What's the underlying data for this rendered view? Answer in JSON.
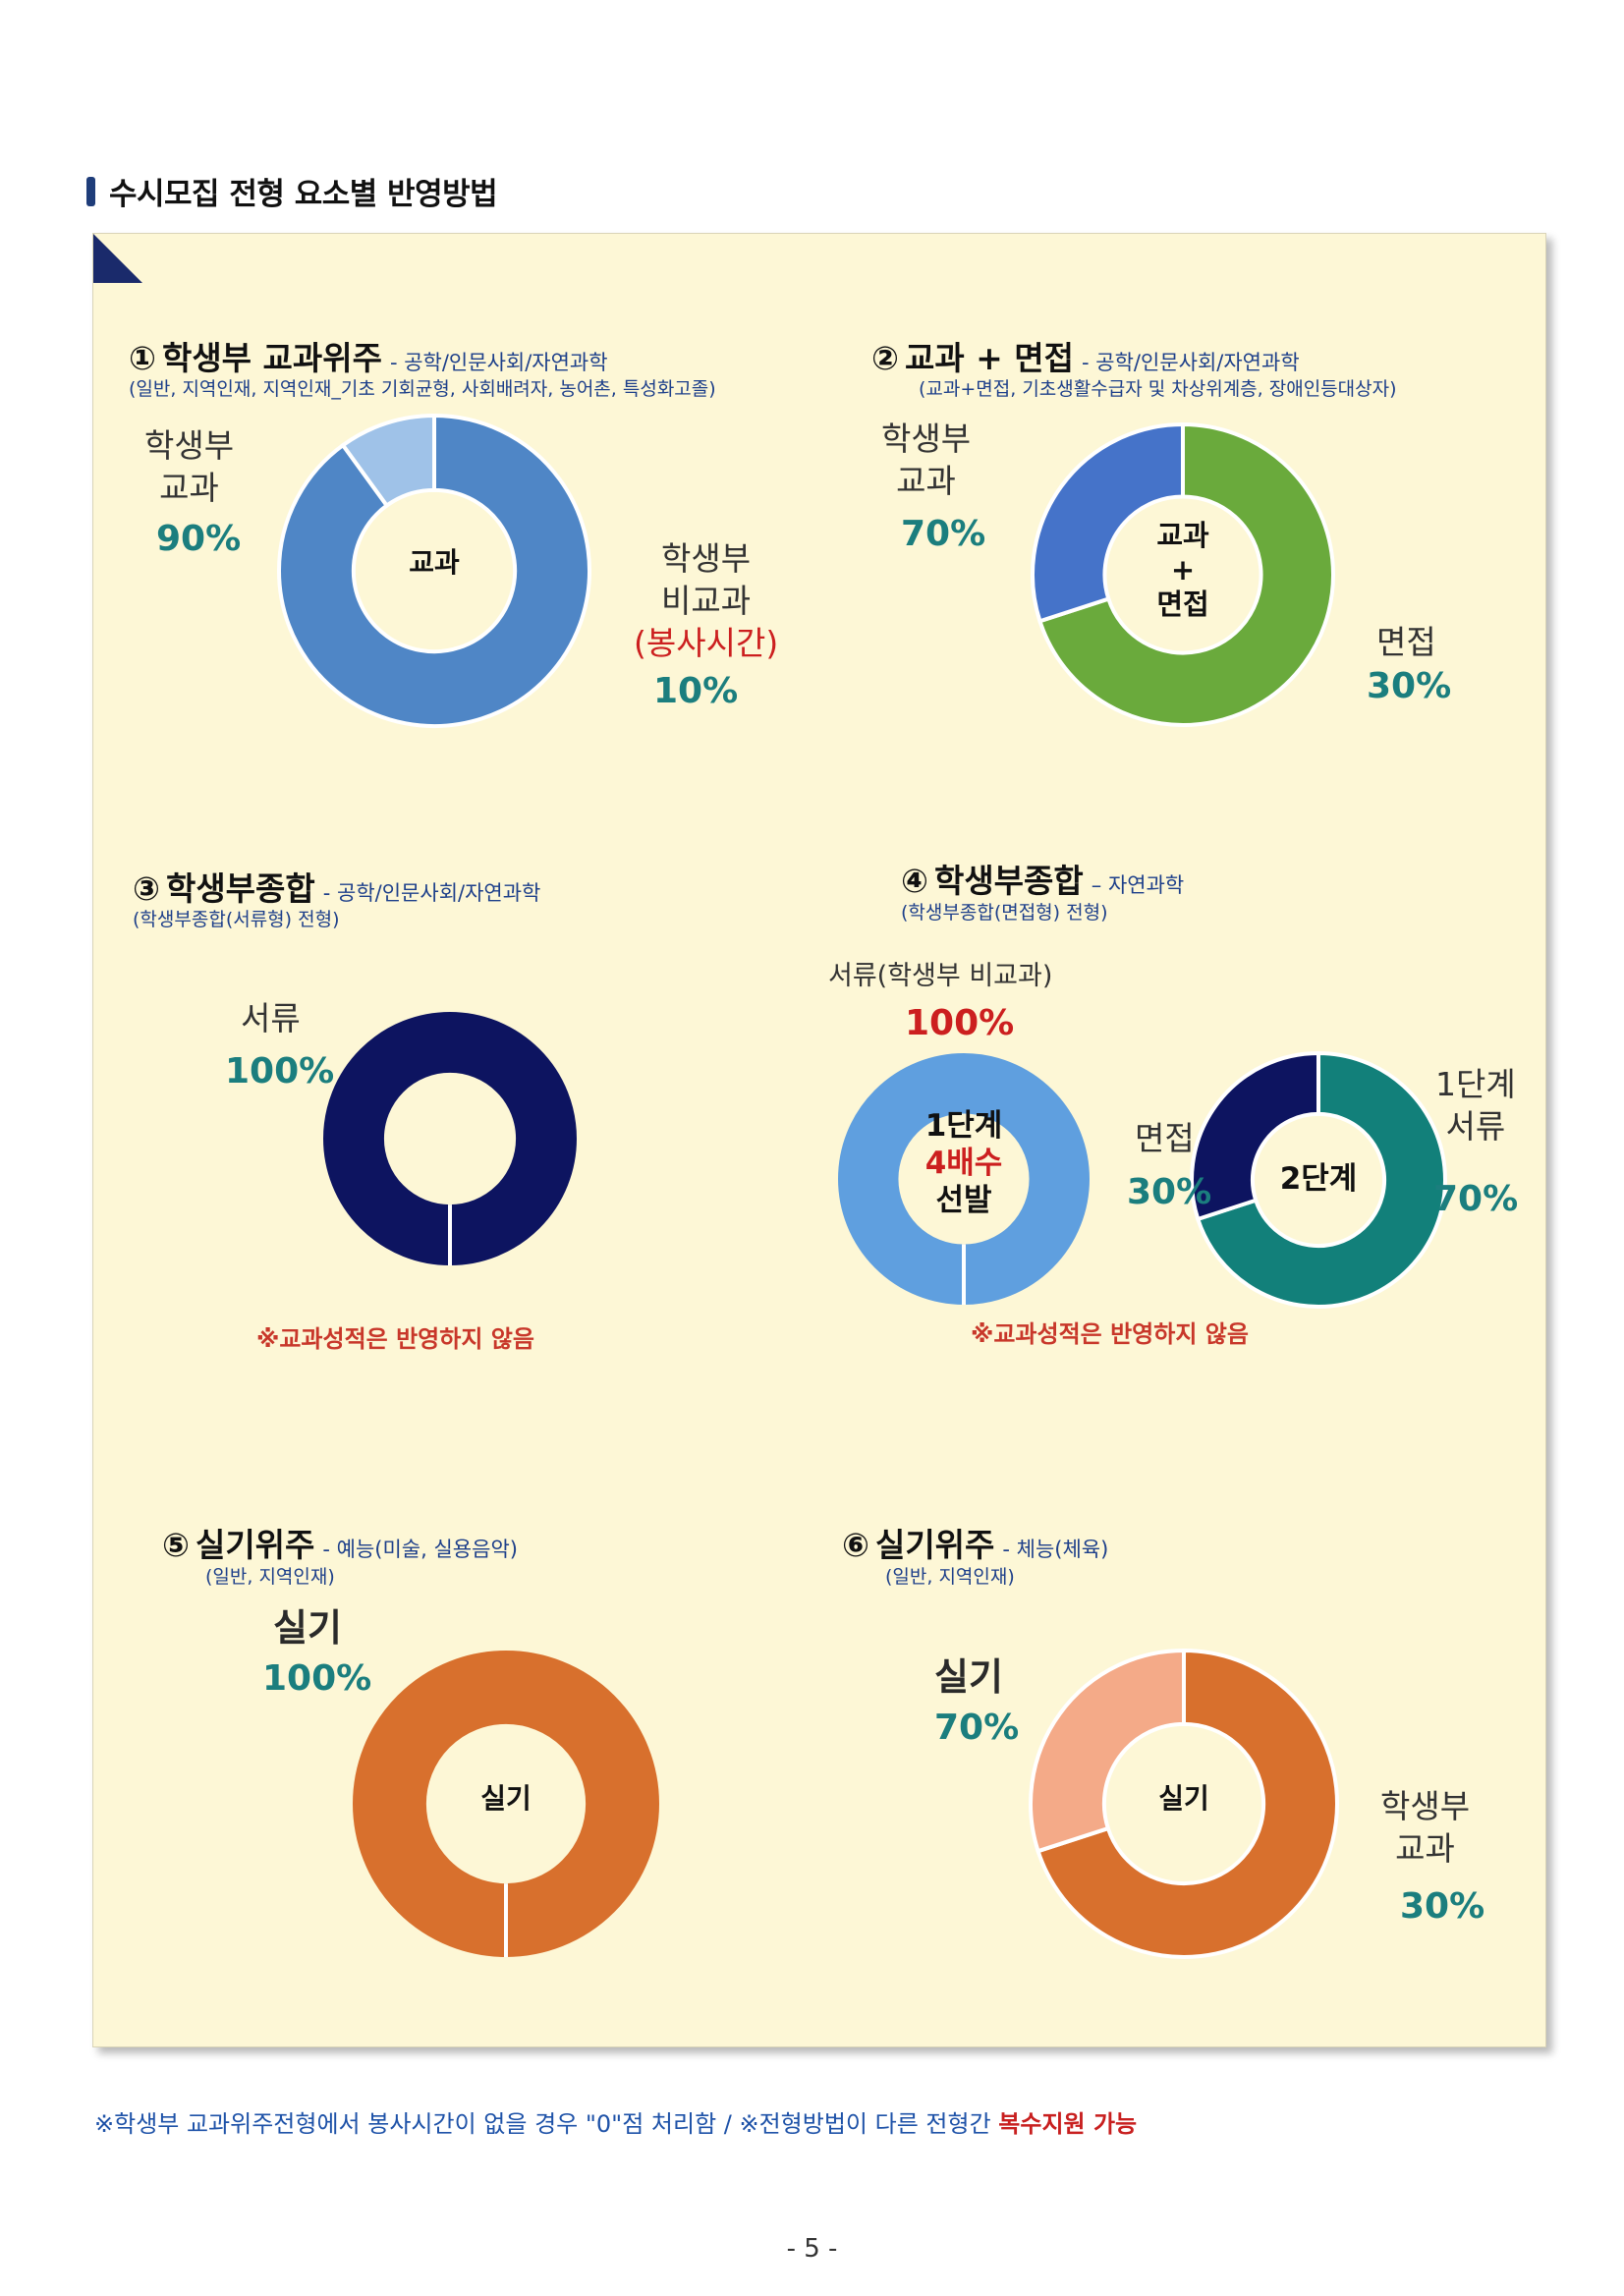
{
  "page": {
    "heading": "수시모집 전형 요소별 반영방법",
    "footnote_part1": "※학생부 교과위주전형에서 봉사시간이 없을 경우 \"0\"점 처리함 / ※전형방법이 다른 전형간 ",
    "footnote_highlight": "복수지원 가능",
    "page_number": "- 5 -"
  },
  "sections": [
    {
      "num": "①",
      "name": "학생부 교과위주",
      "cat": "- 공학/인문사회/자연과학",
      "sub": "(일반, 지역인재, 지역인재_기초 기회균형, 사회배려자, 농어촌, 특성화고졸)",
      "center": "교과",
      "labels": {
        "a_line1": "학생부",
        "a_line2": "교과",
        "a_pct": "90%",
        "b_line1": "학생부",
        "b_line2": "비교과",
        "b_note": "(봉사시간)",
        "b_pct": "10%"
      }
    },
    {
      "num": "②",
      "name": "교과 + 면접",
      "cat": "- 공학/인문사회/자연과학",
      "sub": "(교과+면접, 기초생활수급자 및 차상위계층, 장애인등대상자)",
      "center_line1": "교과",
      "center_line2": "+",
      "center_line3": "면접",
      "labels": {
        "a_line1": "학생부",
        "a_line2": "교과",
        "a_pct": "70%",
        "b_line1": "면접",
        "b_pct": "30%"
      }
    },
    {
      "num": "③",
      "name": "학생부종합",
      "cat": "- 공학/인문사회/자연과학",
      "sub": "(학생부종합(서류형) 전형)",
      "labels": {
        "a_line1": "서류",
        "a_pct": "100%"
      },
      "note": "※교과성적은 반영하지 않음"
    },
    {
      "num": "④",
      "name": "학생부종합",
      "cat": "– 자연과학",
      "sub": "(학생부종합(면접형) 전형)",
      "labels": {
        "stage1_label": "서류(학생부 비교과)",
        "stage1_pct": "100%",
        "stage1_c1": "1단계",
        "stage1_c2": "4배수",
        "stage1_c3": "선발",
        "stage2_center": "2단계",
        "interview": "면접",
        "interview_pct": "30%",
        "docs_line1": "1단계",
        "docs_line2": "서류",
        "docs_pct": "70%"
      },
      "note": "※교과성적은 반영하지 않음"
    },
    {
      "num": "⑤",
      "name": "실기위주",
      "cat": "- 예능(미술, 실용음악)",
      "sub": "(일반, 지역인재)",
      "center": "실기",
      "labels": {
        "a_line1": "실기",
        "a_pct": "100%"
      }
    },
    {
      "num": "⑥",
      "name": "실기위주",
      "cat": "- 체능(체육)",
      "sub": "(일반, 지역인재)",
      "center": "실기",
      "labels": {
        "a_line1": "실기",
        "a_pct": "70%",
        "b_line1": "학생부",
        "b_line2": "교과",
        "b_pct": "30%"
      }
    }
  ],
  "chart_data": [
    {
      "type": "pie",
      "title": "학생부 교과위주",
      "series": [
        {
          "values": [
            90,
            10
          ]
        }
      ],
      "categories": [
        "학생부 교과",
        "학생부 비교과(봉사시간)"
      ],
      "colors": [
        "#4f86c6",
        "#9fc2e8"
      ]
    },
    {
      "type": "pie",
      "title": "교과 + 면접",
      "series": [
        {
          "values": [
            70,
            30
          ]
        }
      ],
      "categories": [
        "학생부 교과",
        "면접"
      ],
      "colors": [
        "#6aaa3c",
        "#4573c9"
      ]
    },
    {
      "type": "pie",
      "title": "학생부종합",
      "series": [
        {
          "values": [
            100
          ]
        }
      ],
      "categories": [
        "서류"
      ],
      "colors": [
        "#0d1460"
      ]
    },
    {
      "type": "pie",
      "title": "학생부종합 1단계",
      "series": [
        {
          "values": [
            100
          ]
        }
      ],
      "categories": [
        "서류(학생부 비교과)"
      ],
      "colors": [
        "#5f9fdf"
      ]
    },
    {
      "type": "pie",
      "title": "학생부종합 2단계",
      "series": [
        {
          "values": [
            70,
            30
          ]
        }
      ],
      "categories": [
        "1단계 서류",
        "면접"
      ],
      "colors": [
        "#12807a",
        "#0d1460"
      ]
    },
    {
      "type": "pie",
      "title": "실기위주",
      "series": [
        {
          "values": [
            100
          ]
        }
      ],
      "categories": [
        "실기"
      ],
      "colors": [
        "#d8702d"
      ]
    },
    {
      "type": "pie",
      "title": "실기위주",
      "series": [
        {
          "values": [
            70,
            30
          ]
        }
      ],
      "categories": [
        "실기",
        "학생부 교과"
      ],
      "colors": [
        "#d8702d",
        "#f4aa88"
      ]
    }
  ]
}
